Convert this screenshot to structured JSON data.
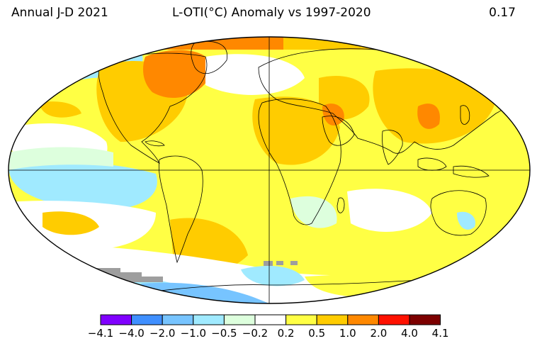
{
  "header": {
    "left": "Annual J-D 2021",
    "middle": "L-OTI(°C) Anomaly vs 1997-2020",
    "right": "0.17"
  },
  "colorbar": {
    "colors": [
      "#8000ff",
      "#3f8fff",
      "#77c4ff",
      "#a0eaff",
      "#ddffdd",
      "#ffffff",
      "#ffff44",
      "#ffcc00",
      "#ff8800",
      "#ff1100",
      "#7d0000"
    ],
    "labels": [
      "−4.1",
      "−4.0",
      "−2.0",
      "−1.0",
      "−0.5",
      "−0.2",
      "0.2",
      "0.5",
      "1.0",
      "2.0",
      "4.0",
      "4.1"
    ]
  }
}
